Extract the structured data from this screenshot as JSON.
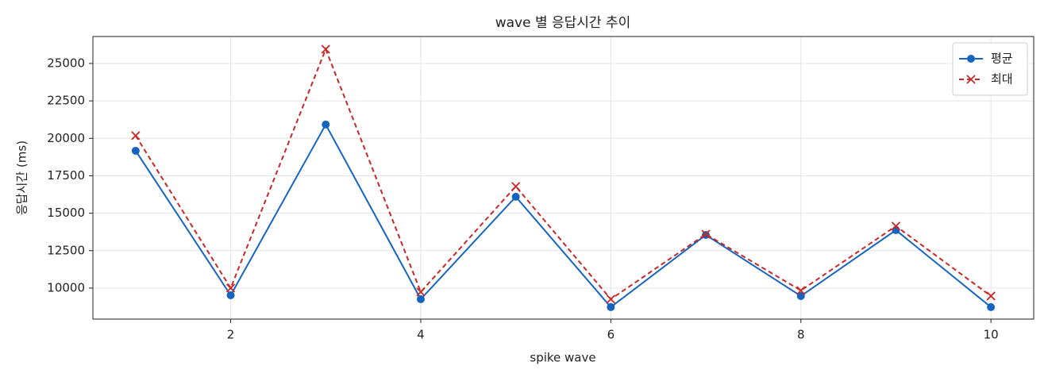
{
  "chart_data": {
    "type": "line",
    "title": "wave 별 응답시간 추이",
    "xlabel": "spike wave",
    "ylabel": "응답시간 (ms)",
    "x": [
      1,
      2,
      3,
      4,
      5,
      6,
      7,
      8,
      9,
      10
    ],
    "series": [
      {
        "name": "평균",
        "color": "#1565c0",
        "marker": "circle",
        "dash": false,
        "values": [
          19170,
          9520,
          20920,
          9260,
          16100,
          8730,
          13550,
          9470,
          13870,
          8730
        ]
      },
      {
        "name": "최대",
        "color": "#c62828",
        "marker": "x",
        "dash": true,
        "values": [
          20180,
          10000,
          25950,
          9740,
          16790,
          9260,
          13600,
          9840,
          14140,
          9470
        ]
      }
    ],
    "xlim": [
      0.55,
      10.45
    ],
    "ylim": [
      7930,
      26800
    ],
    "xticks": [
      2,
      4,
      6,
      8,
      10
    ],
    "yticks": [
      10000,
      12500,
      15000,
      17500,
      20000,
      22500,
      25000
    ],
    "grid": true,
    "legend": "upper right"
  }
}
